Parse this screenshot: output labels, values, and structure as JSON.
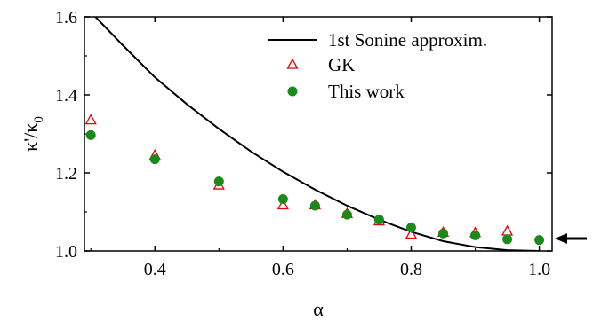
{
  "chart_data": {
    "type": "scatter",
    "xlabel": "α",
    "ylabel": "κ'/κ",
    "ylabel_sub": "0",
    "xlim": [
      0.29,
      1.02
    ],
    "ylim": [
      1.0,
      1.6
    ],
    "xticks": [
      0.4,
      0.6,
      0.8,
      1.0
    ],
    "yticks": [
      1.0,
      1.2,
      1.4,
      1.6
    ],
    "xtick_labels": [
      "0.4",
      "0.6",
      "0.8",
      "1.0"
    ],
    "ytick_labels": [
      "1.0",
      "1.2",
      "1.4",
      "1.6"
    ],
    "legend_position": "top-right",
    "grid": false,
    "series": [
      {
        "name": "1st Sonine approxim.",
        "kind": "line",
        "color": "#000000",
        "x": [
          0.3,
          0.35,
          0.4,
          0.45,
          0.5,
          0.55,
          0.6,
          0.65,
          0.7,
          0.75,
          0.8,
          0.85,
          0.9,
          0.95,
          1.0
        ],
        "y": [
          1.612,
          1.527,
          1.445,
          1.376,
          1.313,
          1.255,
          1.203,
          1.157,
          1.116,
          1.08,
          1.049,
          1.025,
          1.01,
          1.002,
          1.0
        ]
      },
      {
        "name": "GK",
        "kind": "triangle",
        "color": "#e8000b",
        "x": [
          0.3,
          0.4,
          0.5,
          0.6,
          0.65,
          0.7,
          0.75,
          0.8,
          0.85,
          0.9,
          0.95
        ],
        "y": [
          1.335,
          1.245,
          1.168,
          1.117,
          1.117,
          1.095,
          1.076,
          1.042,
          1.047,
          1.046,
          1.05
        ]
      },
      {
        "name": "This work",
        "kind": "circle",
        "color": "#1a8a1a",
        "x": [
          0.3,
          0.4,
          0.5,
          0.6,
          0.65,
          0.7,
          0.75,
          0.8,
          0.85,
          0.9,
          0.95,
          1.0
        ],
        "y": [
          1.297,
          1.235,
          1.178,
          1.133,
          1.116,
          1.093,
          1.08,
          1.06,
          1.045,
          1.04,
          1.03,
          1.028
        ]
      }
    ],
    "annotations": [
      {
        "kind": "arrow",
        "direction": "left",
        "points_to": {
          "x": 1.0,
          "y": 1.028
        }
      }
    ]
  }
}
